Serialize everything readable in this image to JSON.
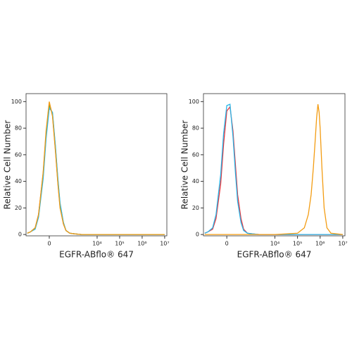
{
  "chart_data": [
    {
      "type": "line",
      "xscale": "asinh",
      "linthresh": 150,
      "xlabel": "EGFR-ABflo® 647",
      "ylabel": "Relative Cell Number",
      "xlim": [
        -800,
        12500000
      ],
      "ylim": [
        -1,
        106
      ],
      "xticks": [
        0,
        {
          "value": 10000,
          "label": "10⁴"
        },
        {
          "value": 100000,
          "label": "10⁵"
        },
        {
          "value": 1000000,
          "label": "10⁶"
        },
        {
          "value": 10000000,
          "label": "10⁷"
        }
      ],
      "yticks": [
        0,
        20,
        40,
        60,
        80,
        100
      ],
      "x": [
        -700,
        -500,
        -300,
        -200,
        -100,
        -50,
        0,
        50,
        100,
        150,
        200,
        300,
        400,
        600,
        1000,
        2000,
        10000,
        100000,
        1000000,
        10000000
      ],
      "series": [
        {
          "color": "#e8333a",
          "values": [
            1,
            2,
            5,
            15,
            46,
            76,
            99,
            90,
            64,
            39,
            21,
            8,
            3,
            1,
            0.5,
            0,
            0,
            0,
            0,
            0
          ]
        },
        {
          "color": "#4caf50",
          "values": [
            1,
            2,
            5,
            14,
            44,
            74,
            97,
            91,
            66,
            41,
            23,
            9,
            3,
            1,
            0.5,
            0,
            0,
            0,
            0,
            0
          ]
        },
        {
          "color": "#29b6e8",
          "values": [
            1,
            2,
            4,
            13,
            42,
            72,
            95,
            92,
            67,
            42,
            24,
            9,
            3,
            1,
            0.5,
            0,
            0,
            0,
            0,
            0
          ]
        },
        {
          "color": "#f39c12",
          "values": [
            1,
            2,
            5,
            15,
            47,
            78,
            100,
            89,
            63,
            38,
            20,
            8,
            3,
            1,
            0.5,
            0,
            0,
            0,
            0,
            0
          ]
        }
      ]
    },
    {
      "type": "line",
      "xscale": "asinh",
      "linthresh": 150,
      "xlabel": "EGFR-ABflo® 647",
      "ylabel": "Relative Cell Number",
      "xlim": [
        -800,
        12500000
      ],
      "ylim": [
        -1,
        106
      ],
      "xticks": [
        0,
        {
          "value": 10000,
          "label": "10⁴"
        },
        {
          "value": 100000,
          "label": "10⁵"
        },
        {
          "value": 1000000,
          "label": "10⁶"
        },
        {
          "value": 10000000,
          "label": "10⁷"
        }
      ],
      "yticks": [
        0,
        20,
        40,
        60,
        80,
        100
      ],
      "x": [
        -700,
        -500,
        -300,
        -200,
        -100,
        -50,
        0,
        50,
        100,
        150,
        200,
        300,
        400,
        600,
        1000,
        2000,
        10000,
        100000,
        200000,
        300000,
        400000,
        500000,
        600000,
        700000,
        800000,
        900000,
        1000000,
        1200000,
        1500000,
        2000000,
        3000000,
        10000000
      ],
      "series": [
        {
          "color": "#e8333a",
          "values": [
            1,
            2,
            4,
            12,
            38,
            68,
            93,
            96,
            78,
            52,
            30,
            12,
            4,
            1,
            0.5,
            0,
            0,
            0,
            0,
            0,
            0,
            0,
            0,
            0,
            0,
            0,
            0,
            0,
            0,
            0,
            0,
            0
          ]
        },
        {
          "color": "#29b6e8",
          "values": [
            1,
            2,
            5,
            15,
            45,
            76,
            97,
            98,
            74,
            46,
            25,
            9,
            3,
            1,
            0.5,
            0,
            0,
            0,
            0,
            0,
            0,
            0,
            0,
            0,
            0,
            0,
            0,
            0,
            0,
            0,
            0,
            0
          ]
        },
        {
          "color": "#f39c12",
          "values": [
            0,
            0,
            0,
            0,
            0,
            0,
            0,
            0,
            0,
            0,
            0,
            0,
            0,
            0,
            0,
            0,
            0,
            1,
            5,
            15,
            30,
            50,
            70,
            88,
            98,
            92,
            80,
            50,
            20,
            5,
            1,
            0
          ]
        }
      ]
    }
  ]
}
